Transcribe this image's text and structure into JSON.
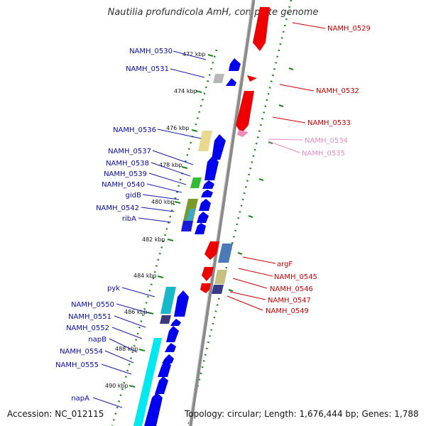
{
  "title": "Nautilia profundicola AmH, complete genome",
  "footer": {
    "accession": "Accession: NC_012115",
    "summary": "Topology: circular; Length: 1,676,444 bp; Genes: 1,788"
  },
  "colors": {
    "backbone": "#8a8a8a",
    "forward_gene": "#0000ee",
    "reverse_gene": "#ee0000",
    "tick": "#1a8a1a",
    "label_forward": "#0a0aaa",
    "label_reverse": "#cc0000",
    "label_pseudo": "#e88ac0"
  },
  "kbp_ticks": [
    "472 kbp",
    "474 kbp",
    "476 kbp",
    "478 kbp",
    "480 kbp",
    "482 kbp",
    "484 kbp",
    "486 kbp",
    "488 kbp",
    "490 kbp"
  ],
  "left_labels": [
    "NAMH_0530",
    "NAMH_0531",
    "NAMH_0536",
    "NAMH_0537",
    "NAMH_0538",
    "NAMH_0539",
    "NAMH_0540",
    "gidB",
    "NAMH_0542",
    "ribA",
    "pyk",
    "NAMH_0550",
    "NAMH_0551",
    "NAMH_0552",
    "napB",
    "NAMH_0554",
    "NAMH_0555",
    "napA"
  ],
  "right_labels": [
    "NAMH_0529",
    "NAMH_0532",
    "NAMH_0533",
    "NAMH_0534",
    "NAMH_0535",
    "argF",
    "NAMH_0545",
    "NAMH_0546",
    "NAMH_0547",
    "NAMH_0549"
  ]
}
